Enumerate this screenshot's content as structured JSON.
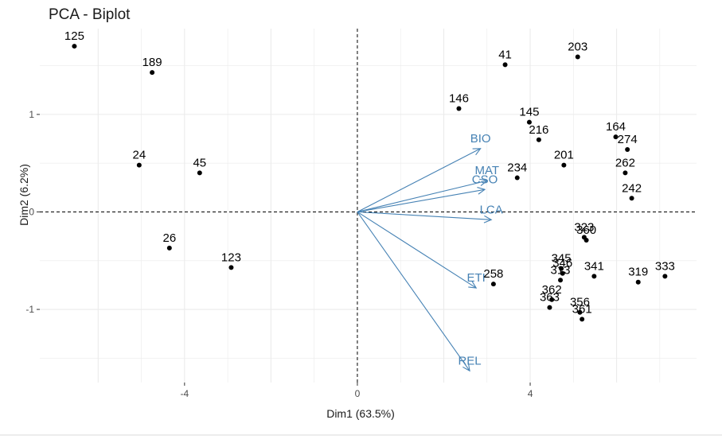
{
  "chart_data": {
    "type": "scatter",
    "title": "PCA - Biplot",
    "xlabel": "Dim1 (63.5%)",
    "ylabel": "Dim2 (6.2%)",
    "xlim": [
      -7.35,
      7.85
    ],
    "ylim": [
      -1.75,
      1.88
    ],
    "x_ticks": [
      -4,
      0,
      4
    ],
    "y_ticks": [
      -1,
      0,
      1
    ],
    "grid": true,
    "points": [
      {
        "label": "125",
        "x": -6.55,
        "y": 1.7
      },
      {
        "label": "189",
        "x": -4.75,
        "y": 1.43
      },
      {
        "label": "24",
        "x": -5.05,
        "y": 0.48
      },
      {
        "label": "45",
        "x": -3.65,
        "y": 0.4
      },
      {
        "label": "26",
        "x": -4.35,
        "y": -0.37
      },
      {
        "label": "123",
        "x": -2.92,
        "y": -0.57
      },
      {
        "label": "41",
        "x": 3.42,
        "y": 1.51
      },
      {
        "label": "203",
        "x": 5.1,
        "y": 1.59
      },
      {
        "label": "146",
        "x": 2.35,
        "y": 1.06
      },
      {
        "label": "145",
        "x": 3.98,
        "y": 0.92
      },
      {
        "label": "216",
        "x": 4.2,
        "y": 0.74
      },
      {
        "label": "164",
        "x": 5.98,
        "y": 0.77
      },
      {
        "label": "274",
        "x": 6.25,
        "y": 0.64
      },
      {
        "label": "201",
        "x": 4.78,
        "y": 0.48
      },
      {
        "label": "234",
        "x": 3.7,
        "y": 0.35
      },
      {
        "label": "262",
        "x": 6.2,
        "y": 0.4
      },
      {
        "label": "242",
        "x": 6.35,
        "y": 0.14
      },
      {
        "label": "323",
        "x": 5.25,
        "y": -0.26
      },
      {
        "label": "360",
        "x": 5.3,
        "y": -0.29
      },
      {
        "label": "345",
        "x": 4.72,
        "y": -0.58
      },
      {
        "label": "346",
        "x": 4.75,
        "y": -0.63
      },
      {
        "label": "341",
        "x": 5.48,
        "y": -0.66
      },
      {
        "label": "313",
        "x": 4.7,
        "y": -0.7
      },
      {
        "label": "319",
        "x": 6.5,
        "y": -0.72
      },
      {
        "label": "333",
        "x": 7.12,
        "y": -0.66
      },
      {
        "label": "258",
        "x": 3.15,
        "y": -0.74
      },
      {
        "label": "362",
        "x": 4.5,
        "y": -0.9
      },
      {
        "label": "363",
        "x": 4.45,
        "y": -0.98
      },
      {
        "label": "356",
        "x": 5.15,
        "y": -1.03
      },
      {
        "label": "361",
        "x": 5.2,
        "y": -1.1
      }
    ],
    "variables": [
      {
        "label": "BIO",
        "x": 2.85,
        "y": 0.65
      },
      {
        "label": "MAT",
        "x": 3.0,
        "y": 0.32
      },
      {
        "label": "CSO",
        "x": 2.95,
        "y": 0.23
      },
      {
        "label": "LCA",
        "x": 3.1,
        "y": -0.08
      },
      {
        "label": "ETI",
        "x": 2.75,
        "y": -0.78
      },
      {
        "label": "REL",
        "x": 2.6,
        "y": -1.63
      }
    ],
    "colors": {
      "points": "#000000",
      "variables": "#4682B4",
      "grid": "#ebebeb",
      "reference_lines": "#000000"
    }
  }
}
